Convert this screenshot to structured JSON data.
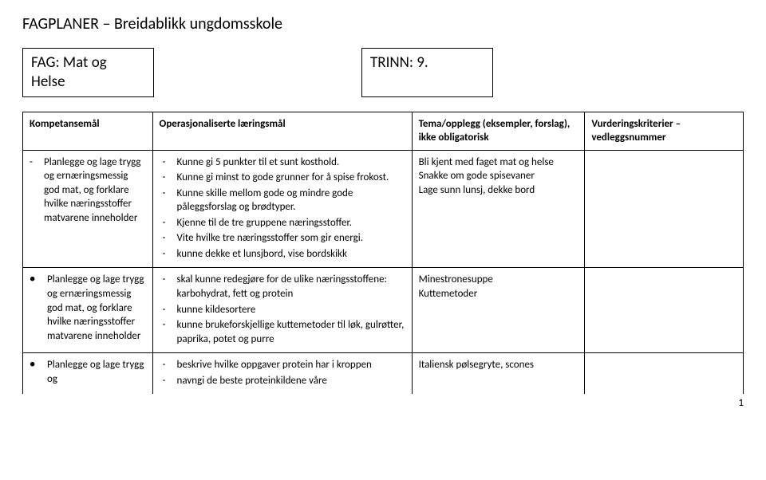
{
  "title": "FAGPLANER – Breidablikk ungdomsskole",
  "meta": {
    "fag_label": "FAG: Mat og\nHelse",
    "trinn_label": "TRINN: 9."
  },
  "columns": {
    "c1": "Kompetansemål",
    "c2": "Operasjonaliserte læringsmål",
    "c3": "Tema/opplegg (eksempler, forslag), ikke obligatorisk",
    "c4": "Vurderingskriterier – vedleggsnummer"
  },
  "rows": [
    {
      "kompetanse_text": "Planlegge og lage trygg og ernæringsmessig god mat, og forklare hvilke næringsstoffer matvarene inneholder",
      "kompetanse_marker": "dash",
      "laeringsmaal": [
        "Kunne gi 5 punkter til et sunt kosthold.",
        "Kunne gi minst to gode grunner for å spise frokost.",
        "Kunne skille mellom gode og mindre gode påleggsforslag og brødtyper.",
        "Kjenne til de tre gruppene næringsstoffer.",
        "Vite hvilke tre næringsstoffer som gir energi.",
        "kunne dekke et lunsjbord, vise bordskikk"
      ],
      "tema": "Bli kjent med faget mat og helse\nSnakke om gode spisevaner\nLage sunn lunsj, dekke bord",
      "vurdering": ""
    },
    {
      "kompetanse_text": "Planlegge og lage trygg og ernæringsmessig god mat, og forklare hvilke næringsstoffer matvarene inneholder",
      "kompetanse_marker": "bullet",
      "laeringsmaal": [
        "skal kunne redegjøre for de ulike næringsstoffene: karbohydrat, fett og protein",
        "kunne kildesortere",
        "kunne brukeforskjellige kuttemetoder til løk, gulrøtter, paprika, potet og purre"
      ],
      "tema": "Minestronesuppe\nKuttemetoder",
      "vurdering": ""
    },
    {
      "kompetanse_text": "Planlegge og lage trygg og",
      "kompetanse_marker": "bullet",
      "laeringsmaal": [
        "beskrive hvilke oppgaver protein har i kroppen",
        "navngi de beste proteinkildene våre"
      ],
      "tema": "Italiensk pølsegryte, scones",
      "vurdering": ""
    }
  ],
  "pagenum": "1"
}
